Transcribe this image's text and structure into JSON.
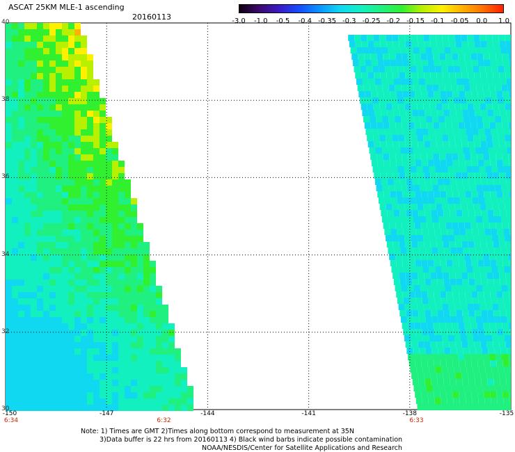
{
  "title": "ASCAT 25KM MLE-1 ascending",
  "date": "20160113",
  "colorbar": {
    "ticks": [
      "-3.0",
      "-1.0",
      "-0.5",
      "-0.4",
      "-0.35",
      "-0.3",
      "-0.25",
      "-0.2",
      "-0.15",
      "-0.1",
      "-0.05",
      "0.0",
      "1.0"
    ],
    "colors": [
      "#120012",
      "#3d0a6e",
      "#3a1cc8",
      "#1450ff",
      "#0a98ff",
      "#10d8f0",
      "#12f0c0",
      "#20f080",
      "#30f030",
      "#b8f000",
      "#fff000",
      "#ffb000",
      "#ff7000",
      "#ff2000"
    ]
  },
  "map": {
    "lon_range": [
      -150,
      -135
    ],
    "lat_range": [
      30,
      40
    ],
    "lon_ticks": [
      "-150",
      "-147",
      "-144",
      "-141",
      "-138",
      "-135"
    ],
    "lat_ticks": [
      "40",
      "38",
      "36",
      "34",
      "32",
      "30"
    ],
    "swath_times": [
      {
        "lon": -150,
        "label": "6:34"
      },
      {
        "lon": -145.3,
        "label": "6:32"
      },
      {
        "lon": -137.8,
        "label": "6:33"
      }
    ]
  },
  "notes": [
    "Note: 1) Times are GMT 2)Times along bottom correspond to measurement at 35N",
    "3)Data buffer is 22 hrs from 20160113 4) Black wind barbs indicate possible contamination",
    "NOAA/NESDIS/Center for Satellite Applications and Research"
  ]
}
